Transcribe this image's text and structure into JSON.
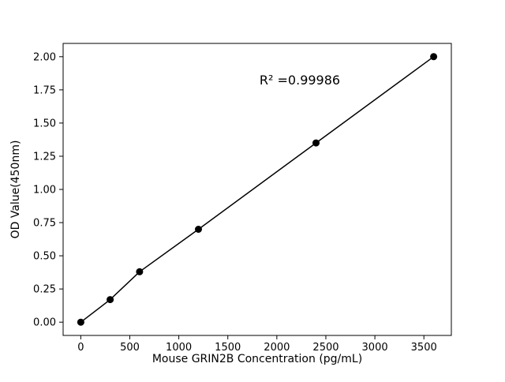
{
  "chart_data": {
    "type": "scatter",
    "title": "",
    "xlabel": "Mouse GRIN2B Concentration (pg/mL)",
    "ylabel": "OD Value(450nm)",
    "x": [
      0,
      300,
      600,
      1200,
      2400,
      3600
    ],
    "y": [
      0.0,
      0.17,
      0.38,
      0.7,
      1.35,
      2.0
    ],
    "xlim": [
      -180,
      3780
    ],
    "ylim": [
      -0.1,
      2.1
    ],
    "xticks": {
      "values": [
        0,
        500,
        1000,
        1500,
        2000,
        2500,
        3000,
        3500
      ],
      "labels": [
        "0",
        "500",
        "1000",
        "1500",
        "2000",
        "2500",
        "3000",
        "3500"
      ]
    },
    "yticks": {
      "values": [
        0.0,
        0.25,
        0.5,
        0.75,
        1.0,
        1.25,
        1.5,
        1.75,
        2.0
      ],
      "labels": [
        "0.00",
        "0.25",
        "0.50",
        "0.75",
        "1.00",
        "1.25",
        "1.50",
        "1.75",
        "2.00"
      ]
    },
    "annotation": {
      "text": "R² =0.99986",
      "x": 2200,
      "y": 1.83
    },
    "line_color": "#000000",
    "marker_color": "#000000",
    "background_color": "#ffffff",
    "grid": false,
    "legend": null
  }
}
